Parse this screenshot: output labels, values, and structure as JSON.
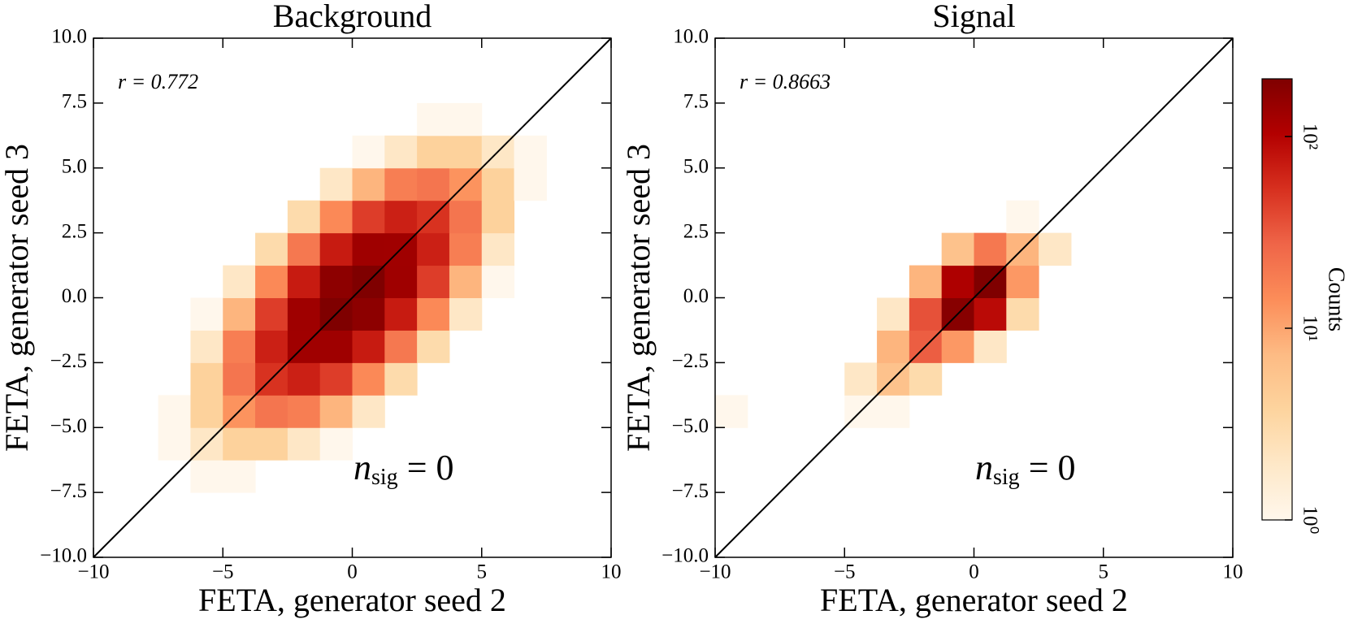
{
  "chart_data": [
    {
      "type": "heatmap",
      "title": "Background",
      "xlabel": "FETA, generator seed 2",
      "ylabel": "FETA, generator seed 3",
      "annotation": "r = 0.772",
      "annotation2": {
        "base": "n",
        "subscript": "sig",
        "tail": " = 0"
      },
      "xlim": [
        -10,
        10
      ],
      "ylim": [
        -10,
        10
      ],
      "xticks": [
        {
          "value": -10,
          "label": "−10"
        },
        {
          "value": -5,
          "label": "−5"
        },
        0,
        5,
        10
      ],
      "yticks": [
        {
          "value": -10,
          "label": "−10.0"
        },
        {
          "value": -7.5,
          "label": "−7.5"
        },
        {
          "value": -5,
          "label": "−5.0"
        },
        {
          "value": -2.5,
          "label": "−2.5"
        },
        {
          "value": 0,
          "label": "0.0"
        },
        2.5,
        {
          "value": 5,
          "label": "5.0"
        },
        7.5,
        {
          "value": 10,
          "label": "10.0"
        }
      ],
      "xbins": [
        -10,
        -8.75,
        -7.5,
        -6.25,
        -5,
        -3.75,
        -2.5,
        -1.25,
        0,
        1.25,
        2.5,
        3.75,
        5,
        6.25,
        7.5,
        8.75,
        10
      ],
      "ybins": [
        -10,
        -8.75,
        -7.5,
        -6.25,
        -5,
        -3.75,
        -2.5,
        -1.25,
        0,
        1.25,
        2.5,
        3.75,
        5,
        6.25,
        7.5,
        8.75,
        10
      ],
      "values": [
        [
          0,
          0,
          0,
          0,
          0,
          0,
          0,
          0,
          0,
          0,
          0,
          0,
          0,
          0,
          0,
          0
        ],
        [
          0,
          0,
          0,
          0,
          0,
          0,
          0,
          0,
          0,
          0,
          0,
          0,
          0,
          0,
          0,
          0
        ],
        [
          0,
          0,
          0,
          1,
          1,
          0,
          0,
          0,
          0,
          0,
          0,
          0,
          0,
          0,
          0,
          0
        ],
        [
          0,
          0,
          1,
          2,
          4,
          4,
          2,
          1,
          0,
          0,
          0,
          0,
          0,
          0,
          0,
          0
        ],
        [
          0,
          0,
          1,
          4,
          13,
          21,
          18,
          8,
          2,
          0,
          0,
          0,
          0,
          0,
          0,
          0
        ],
        [
          0,
          0,
          0,
          4,
          21,
          52,
          66,
          45,
          15,
          3,
          0,
          0,
          0,
          0,
          0,
          0
        ],
        [
          0,
          0,
          0,
          2,
          18,
          66,
          131,
          133,
          71,
          20,
          3,
          0,
          0,
          0,
          0,
          0
        ],
        [
          0,
          0,
          0,
          1,
          8,
          45,
          133,
          208,
          168,
          71,
          15,
          2,
          0,
          0,
          0,
          0
        ],
        [
          0,
          0,
          0,
          0,
          2,
          15,
          71,
          168,
          208,
          133,
          45,
          8,
          1,
          0,
          0,
          0
        ],
        [
          0,
          0,
          0,
          0,
          0,
          3,
          20,
          71,
          133,
          131,
          66,
          18,
          2,
          0,
          0,
          0
        ],
        [
          0,
          0,
          0,
          0,
          0,
          0,
          3,
          15,
          45,
          66,
          52,
          21,
          4,
          0,
          0,
          0
        ],
        [
          0,
          0,
          0,
          0,
          0,
          0,
          0,
          2,
          8,
          18,
          21,
          13,
          4,
          1,
          0,
          0
        ],
        [
          0,
          0,
          0,
          0,
          0,
          0,
          0,
          0,
          1,
          2,
          4,
          4,
          2,
          1,
          0,
          0
        ],
        [
          0,
          0,
          0,
          0,
          0,
          0,
          0,
          0,
          0,
          0,
          1,
          1,
          0,
          0,
          0,
          0
        ],
        [
          0,
          0,
          0,
          0,
          0,
          0,
          0,
          0,
          0,
          0,
          0,
          0,
          0,
          0,
          0,
          0
        ],
        [
          0,
          0,
          0,
          0,
          0,
          0,
          0,
          0,
          0,
          0,
          0,
          0,
          0,
          0,
          0,
          0
        ]
      ]
    },
    {
      "type": "heatmap",
      "title": "Signal",
      "xlabel": "FETA, generator seed 2",
      "ylabel": "FETA, generator seed 3",
      "annotation": "r = 0.8663",
      "annotation2": {
        "base": "n",
        "subscript": "sig",
        "tail": " = 0"
      },
      "xlim": [
        -10,
        10
      ],
      "ylim": [
        -10,
        10
      ],
      "xticks": [
        {
          "value": -10,
          "label": "−10"
        },
        {
          "value": -5,
          "label": "−5"
        },
        0,
        5,
        10
      ],
      "yticks": [
        {
          "value": -10,
          "label": "−10.0"
        },
        {
          "value": -7.5,
          "label": "−7.5"
        },
        {
          "value": -5,
          "label": "−5.0"
        },
        {
          "value": -2.5,
          "label": "−2.5"
        },
        {
          "value": 0,
          "label": "0.0"
        },
        2.5,
        {
          "value": 5,
          "label": "5.0"
        },
        7.5,
        {
          "value": 10,
          "label": "10.0"
        }
      ],
      "xbins": [
        -10,
        -8.75,
        -7.5,
        -6.25,
        -5,
        -3.75,
        -2.5,
        -1.25,
        0,
        1.25,
        2.5,
        3.75,
        5,
        6.25,
        7.5,
        8.75,
        10
      ],
      "ybins": [
        -10,
        -8.75,
        -7.5,
        -6.25,
        -5,
        -3.75,
        -2.5,
        -1.25,
        0,
        1.25,
        2.5,
        3.75,
        5,
        6.25,
        7.5,
        8.75,
        10
      ],
      "values": [
        [
          0,
          0,
          0,
          0,
          0,
          0,
          0,
          0,
          0,
          0,
          0,
          0,
          0,
          0,
          0,
          0
        ],
        [
          0,
          0,
          0,
          0,
          0,
          0,
          0,
          0,
          0,
          0,
          0,
          0,
          0,
          0,
          0,
          0
        ],
        [
          0,
          0,
          0,
          0,
          0,
          0,
          0,
          0,
          0,
          0,
          0,
          0,
          0,
          0,
          0,
          0
        ],
        [
          0,
          0,
          0,
          0,
          0,
          0,
          0,
          0,
          0,
          0,
          0,
          0,
          0,
          0,
          0,
          0
        ],
        [
          1,
          0,
          0,
          0,
          1,
          1,
          0,
          0,
          0,
          0,
          0,
          0,
          0,
          0,
          0,
          0
        ],
        [
          0,
          0,
          0,
          0,
          2,
          6,
          3,
          0,
          0,
          0,
          0,
          0,
          0,
          0,
          0,
          0
        ],
        [
          0,
          0,
          0,
          0,
          0,
          8,
          30,
          12,
          2,
          0,
          0,
          0,
          0,
          0,
          0,
          0
        ],
        [
          0,
          0,
          0,
          0,
          0,
          2,
          35,
          180,
          90,
          3,
          0,
          0,
          0,
          0,
          0,
          0
        ],
        [
          0,
          0,
          0,
          0,
          0,
          0,
          8,
          110,
          200,
          12,
          0,
          0,
          0,
          0,
          0,
          0
        ],
        [
          0,
          0,
          0,
          0,
          0,
          0,
          0,
          6,
          20,
          8,
          2,
          0,
          0,
          0,
          0,
          0
        ],
        [
          0,
          0,
          0,
          0,
          0,
          0,
          0,
          0,
          0,
          1,
          0,
          0,
          0,
          0,
          0,
          0
        ],
        [
          0,
          0,
          0,
          0,
          0,
          0,
          0,
          0,
          0,
          0,
          0,
          0,
          0,
          0,
          0,
          0
        ],
        [
          0,
          0,
          0,
          0,
          0,
          0,
          0,
          0,
          0,
          0,
          0,
          0,
          0,
          0,
          0,
          0
        ],
        [
          0,
          0,
          0,
          0,
          0,
          0,
          0,
          0,
          0,
          0,
          0,
          0,
          0,
          0,
          0,
          0
        ],
        [
          0,
          0,
          0,
          0,
          0,
          0,
          0,
          0,
          0,
          0,
          0,
          0,
          0,
          0,
          0,
          0
        ],
        [
          0,
          0,
          0,
          0,
          0,
          0,
          0,
          0,
          0,
          0,
          0,
          0,
          0,
          0,
          0,
          0
        ]
      ]
    }
  ],
  "colorbar": {
    "label": "Counts",
    "scale": "log",
    "lim": [
      1,
      200
    ],
    "ticks": [
      {
        "value": 1,
        "label": "10⁰"
      },
      {
        "value": 10,
        "label": "10¹"
      },
      {
        "value": 100,
        "label": "10²"
      }
    ],
    "colors": [
      "#fff7ec",
      "#fee8c8",
      "#fdd49e",
      "#fdbb84",
      "#fc8d59",
      "#ef6548",
      "#d7301f",
      "#b30000",
      "#7f0000"
    ]
  }
}
